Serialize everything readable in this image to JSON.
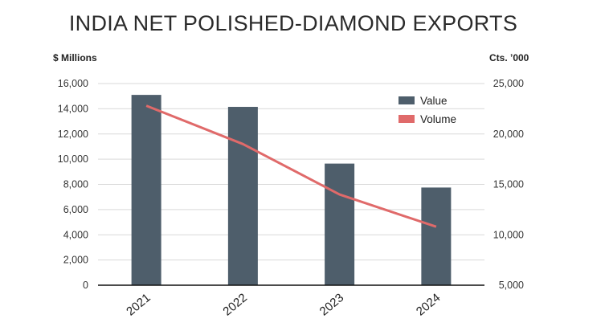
{
  "chart_data": {
    "type": "bar",
    "title": "INDIA NET POLISHED-DIAMOND EXPORTS",
    "ylabel": "$ Millions",
    "y2label": "Cts. ’000",
    "categories": [
      "2021",
      "2022",
      "2023",
      "2024"
    ],
    "ylim": [
      0,
      16000
    ],
    "y2lim": [
      5000,
      25000
    ],
    "yticks": [
      "0",
      "2,000",
      "4,000",
      "6,000",
      "8,000",
      "10,000",
      "12,000",
      "14,000",
      "16,000"
    ],
    "y2ticks": [
      "5,000",
      "10,000",
      "15,000",
      "20,000",
      "25,000"
    ],
    "y2tick_values": [
      5000,
      10000,
      15000,
      20000,
      25000
    ],
    "series": [
      {
        "name": "Value",
        "type": "bar",
        "axis": "left",
        "color": "#4e5e6b",
        "values": [
          15100,
          14150,
          9650,
          7750
        ]
      },
      {
        "name": "Volume",
        "type": "line",
        "axis": "right",
        "color": "#e06a6a",
        "values": [
          22800,
          19000,
          14000,
          10800
        ]
      }
    ],
    "legend": "top-right"
  }
}
